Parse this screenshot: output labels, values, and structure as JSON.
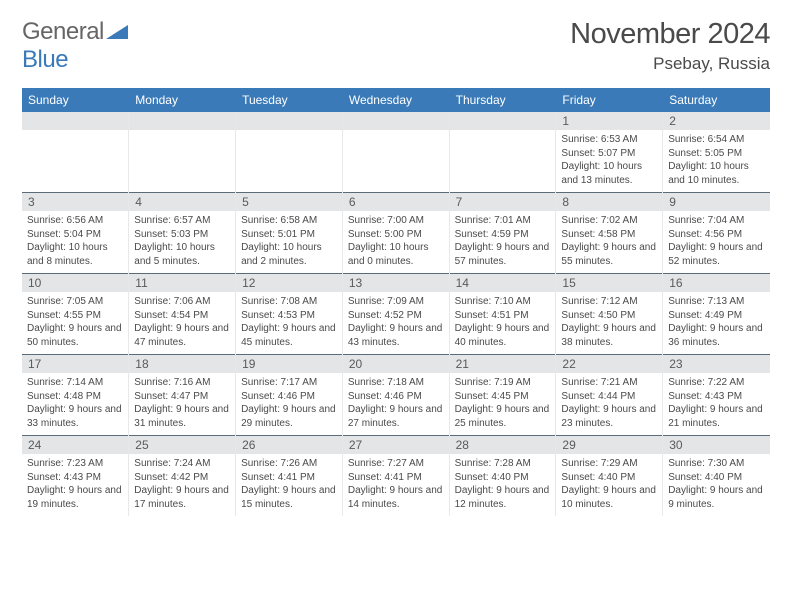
{
  "logo": {
    "general": "General",
    "blue": "Blue"
  },
  "title": "November 2024",
  "location": "Psebay, Russia",
  "header_bg": "#3a7ab8",
  "weekdays": [
    "Sunday",
    "Monday",
    "Tuesday",
    "Wednesday",
    "Thursday",
    "Friday",
    "Saturday"
  ],
  "weeks": [
    [
      {
        "n": "",
        "sr": "",
        "ss": "",
        "dl": ""
      },
      {
        "n": "",
        "sr": "",
        "ss": "",
        "dl": ""
      },
      {
        "n": "",
        "sr": "",
        "ss": "",
        "dl": ""
      },
      {
        "n": "",
        "sr": "",
        "ss": "",
        "dl": ""
      },
      {
        "n": "",
        "sr": "",
        "ss": "",
        "dl": ""
      },
      {
        "n": "1",
        "sr": "Sunrise: 6:53 AM",
        "ss": "Sunset: 5:07 PM",
        "dl": "Daylight: 10 hours and 13 minutes."
      },
      {
        "n": "2",
        "sr": "Sunrise: 6:54 AM",
        "ss": "Sunset: 5:05 PM",
        "dl": "Daylight: 10 hours and 10 minutes."
      }
    ],
    [
      {
        "n": "3",
        "sr": "Sunrise: 6:56 AM",
        "ss": "Sunset: 5:04 PM",
        "dl": "Daylight: 10 hours and 8 minutes."
      },
      {
        "n": "4",
        "sr": "Sunrise: 6:57 AM",
        "ss": "Sunset: 5:03 PM",
        "dl": "Daylight: 10 hours and 5 minutes."
      },
      {
        "n": "5",
        "sr": "Sunrise: 6:58 AM",
        "ss": "Sunset: 5:01 PM",
        "dl": "Daylight: 10 hours and 2 minutes."
      },
      {
        "n": "6",
        "sr": "Sunrise: 7:00 AM",
        "ss": "Sunset: 5:00 PM",
        "dl": "Daylight: 10 hours and 0 minutes."
      },
      {
        "n": "7",
        "sr": "Sunrise: 7:01 AM",
        "ss": "Sunset: 4:59 PM",
        "dl": "Daylight: 9 hours and 57 minutes."
      },
      {
        "n": "8",
        "sr": "Sunrise: 7:02 AM",
        "ss": "Sunset: 4:58 PM",
        "dl": "Daylight: 9 hours and 55 minutes."
      },
      {
        "n": "9",
        "sr": "Sunrise: 7:04 AM",
        "ss": "Sunset: 4:56 PM",
        "dl": "Daylight: 9 hours and 52 minutes."
      }
    ],
    [
      {
        "n": "10",
        "sr": "Sunrise: 7:05 AM",
        "ss": "Sunset: 4:55 PM",
        "dl": "Daylight: 9 hours and 50 minutes."
      },
      {
        "n": "11",
        "sr": "Sunrise: 7:06 AM",
        "ss": "Sunset: 4:54 PM",
        "dl": "Daylight: 9 hours and 47 minutes."
      },
      {
        "n": "12",
        "sr": "Sunrise: 7:08 AM",
        "ss": "Sunset: 4:53 PM",
        "dl": "Daylight: 9 hours and 45 minutes."
      },
      {
        "n": "13",
        "sr": "Sunrise: 7:09 AM",
        "ss": "Sunset: 4:52 PM",
        "dl": "Daylight: 9 hours and 43 minutes."
      },
      {
        "n": "14",
        "sr": "Sunrise: 7:10 AM",
        "ss": "Sunset: 4:51 PM",
        "dl": "Daylight: 9 hours and 40 minutes."
      },
      {
        "n": "15",
        "sr": "Sunrise: 7:12 AM",
        "ss": "Sunset: 4:50 PM",
        "dl": "Daylight: 9 hours and 38 minutes."
      },
      {
        "n": "16",
        "sr": "Sunrise: 7:13 AM",
        "ss": "Sunset: 4:49 PM",
        "dl": "Daylight: 9 hours and 36 minutes."
      }
    ],
    [
      {
        "n": "17",
        "sr": "Sunrise: 7:14 AM",
        "ss": "Sunset: 4:48 PM",
        "dl": "Daylight: 9 hours and 33 minutes."
      },
      {
        "n": "18",
        "sr": "Sunrise: 7:16 AM",
        "ss": "Sunset: 4:47 PM",
        "dl": "Daylight: 9 hours and 31 minutes."
      },
      {
        "n": "19",
        "sr": "Sunrise: 7:17 AM",
        "ss": "Sunset: 4:46 PM",
        "dl": "Daylight: 9 hours and 29 minutes."
      },
      {
        "n": "20",
        "sr": "Sunrise: 7:18 AM",
        "ss": "Sunset: 4:46 PM",
        "dl": "Daylight: 9 hours and 27 minutes."
      },
      {
        "n": "21",
        "sr": "Sunrise: 7:19 AM",
        "ss": "Sunset: 4:45 PM",
        "dl": "Daylight: 9 hours and 25 minutes."
      },
      {
        "n": "22",
        "sr": "Sunrise: 7:21 AM",
        "ss": "Sunset: 4:44 PM",
        "dl": "Daylight: 9 hours and 23 minutes."
      },
      {
        "n": "23",
        "sr": "Sunrise: 7:22 AM",
        "ss": "Sunset: 4:43 PM",
        "dl": "Daylight: 9 hours and 21 minutes."
      }
    ],
    [
      {
        "n": "24",
        "sr": "Sunrise: 7:23 AM",
        "ss": "Sunset: 4:43 PM",
        "dl": "Daylight: 9 hours and 19 minutes."
      },
      {
        "n": "25",
        "sr": "Sunrise: 7:24 AM",
        "ss": "Sunset: 4:42 PM",
        "dl": "Daylight: 9 hours and 17 minutes."
      },
      {
        "n": "26",
        "sr": "Sunrise: 7:26 AM",
        "ss": "Sunset: 4:41 PM",
        "dl": "Daylight: 9 hours and 15 minutes."
      },
      {
        "n": "27",
        "sr": "Sunrise: 7:27 AM",
        "ss": "Sunset: 4:41 PM",
        "dl": "Daylight: 9 hours and 14 minutes."
      },
      {
        "n": "28",
        "sr": "Sunrise: 7:28 AM",
        "ss": "Sunset: 4:40 PM",
        "dl": "Daylight: 9 hours and 12 minutes."
      },
      {
        "n": "29",
        "sr": "Sunrise: 7:29 AM",
        "ss": "Sunset: 4:40 PM",
        "dl": "Daylight: 9 hours and 10 minutes."
      },
      {
        "n": "30",
        "sr": "Sunrise: 7:30 AM",
        "ss": "Sunset: 4:40 PM",
        "dl": "Daylight: 9 hours and 9 minutes."
      }
    ]
  ]
}
